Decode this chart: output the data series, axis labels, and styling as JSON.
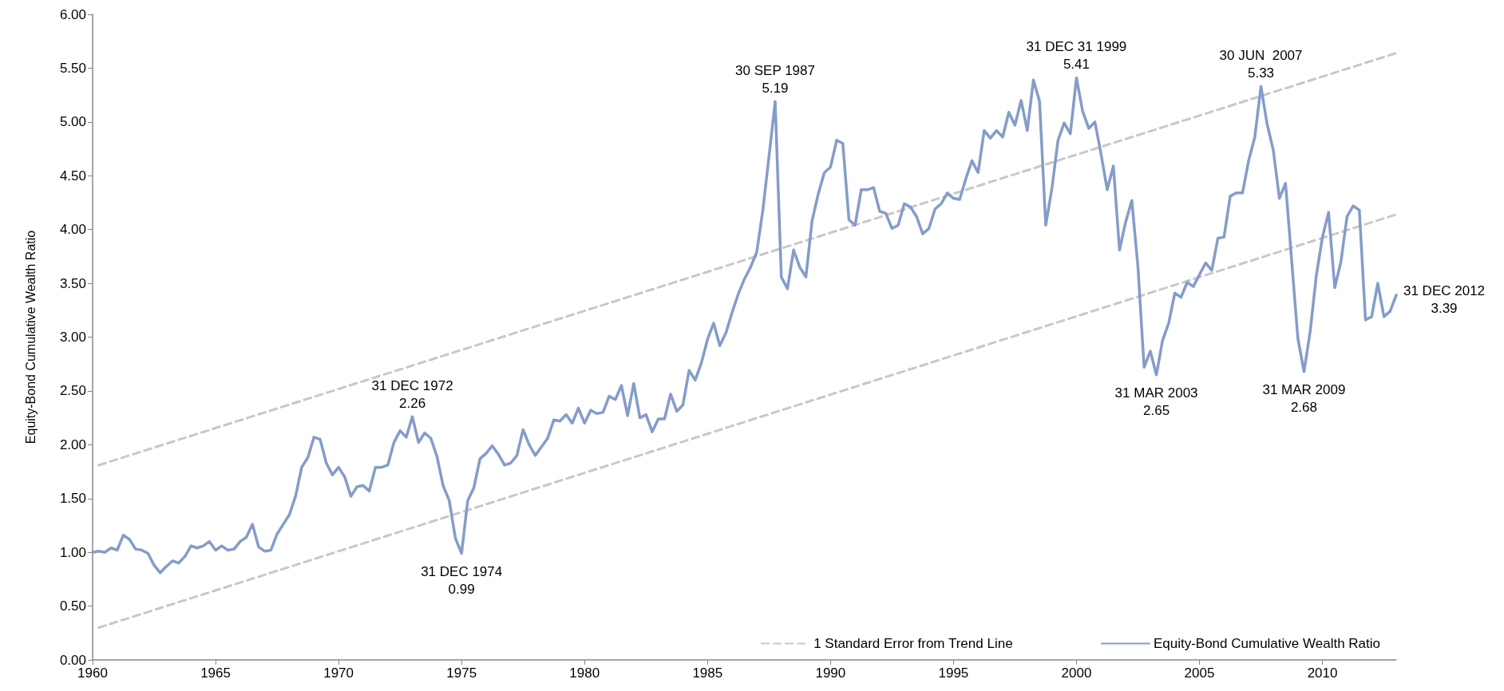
{
  "chart_data": {
    "type": "line",
    "ylabel": "Equity-Bond Cumulative Wealth Ratio",
    "xlim": [
      1960,
      2013
    ],
    "xticks": [
      1960,
      1965,
      1970,
      1975,
      1980,
      1985,
      1990,
      1995,
      2000,
      2005,
      2010
    ],
    "ylim": [
      0,
      6
    ],
    "yticks": [
      {
        "value": 0,
        "label": "0.00"
      },
      {
        "value": 0.5,
        "label": "0.50"
      },
      {
        "value": 1,
        "label": "1.00"
      },
      {
        "value": 1.5,
        "label": "1.50"
      },
      {
        "value": 2,
        "label": "2.00"
      },
      {
        "value": 2.5,
        "label": "2.50"
      },
      {
        "value": 3,
        "label": "3.00"
      },
      {
        "value": 3.5,
        "label": "3.50"
      },
      {
        "value": 4,
        "label": "4.00"
      },
      {
        "value": 4.5,
        "label": "4.50"
      },
      {
        "value": 5,
        "label": "5.00"
      },
      {
        "value": 5.5,
        "label": "5.50"
      },
      {
        "value": 6,
        "label": "6.00"
      }
    ],
    "grid": false,
    "legend": "bottom",
    "marker": "none",
    "series": [
      {
        "name": "1 Standard Error from Trend Line",
        "color": "#c8c8c8",
        "line_style": "dashed",
        "x": [
          1960.25,
          2013
        ],
        "values": [
          1.81,
          5.64
        ]
      },
      {
        "color": "#c8c8c8",
        "line_style": "dashed",
        "x": [
          1960.25,
          2013
        ],
        "values": [
          0.3,
          4.14
        ]
      },
      {
        "name": "Equity-Bond Cumulative Wealth Ratio",
        "color": "#849cc9",
        "line_style": "solid",
        "x": [
          1960,
          1960.25,
          1960.5,
          1960.75,
          1961,
          1961.25,
          1961.5,
          1961.75,
          1962,
          1962.25,
          1962.5,
          1962.75,
          1963,
          1963.25,
          1963.5,
          1963.75,
          1964,
          1964.25,
          1964.5,
          1964.75,
          1965,
          1965.25,
          1965.5,
          1965.75,
          1966,
          1966.25,
          1966.5,
          1966.75,
          1967,
          1967.25,
          1967.5,
          1967.75,
          1968,
          1968.25,
          1968.5,
          1968.75,
          1969,
          1969.25,
          1969.5,
          1969.75,
          1970,
          1970.25,
          1970.5,
          1970.75,
          1971,
          1971.25,
          1971.5,
          1971.75,
          1972,
          1972.25,
          1972.5,
          1972.75,
          1973,
          1973.25,
          1973.5,
          1973.75,
          1974,
          1974.25,
          1974.5,
          1974.75,
          1975,
          1975.25,
          1975.5,
          1975.75,
          1976,
          1976.25,
          1976.5,
          1976.75,
          1977,
          1977.25,
          1977.5,
          1977.75,
          1978,
          1978.25,
          1978.5,
          1978.75,
          1979,
          1979.25,
          1979.5,
          1979.75,
          1980,
          1980.25,
          1980.5,
          1980.75,
          1981,
          1981.25,
          1981.5,
          1981.75,
          1982,
          1982.25,
          1982.5,
          1982.75,
          1983,
          1983.25,
          1983.5,
          1983.75,
          1984,
          1984.25,
          1984.5,
          1984.75,
          1985,
          1985.25,
          1985.5,
          1985.75,
          1986,
          1986.25,
          1986.5,
          1986.75,
          1987,
          1987.25,
          1987.5,
          1987.75,
          1988,
          1988.25,
          1988.5,
          1988.75,
          1989,
          1989.25,
          1989.5,
          1989.75,
          1990,
          1990.25,
          1990.5,
          1990.75,
          1991,
          1991.25,
          1991.5,
          1991.75,
          1992,
          1992.25,
          1992.5,
          1992.75,
          1993,
          1993.25,
          1993.5,
          1993.75,
          1994,
          1994.25,
          1994.5,
          1994.75,
          1995,
          1995.25,
          1995.5,
          1995.75,
          1996,
          1996.25,
          1996.5,
          1996.75,
          1997,
          1997.25,
          1997.5,
          1997.75,
          1998,
          1998.25,
          1998.5,
          1998.75,
          1999,
          1999.25,
          1999.5,
          1999.75,
          2000,
          2000.25,
          2000.5,
          2000.75,
          2001,
          2001.25,
          2001.5,
          2001.75,
          2002,
          2002.25,
          2002.5,
          2002.75,
          2003,
          2003.25,
          2003.5,
          2003.75,
          2004,
          2004.25,
          2004.5,
          2004.75,
          2005,
          2005.25,
          2005.5,
          2005.75,
          2006,
          2006.25,
          2006.5,
          2006.75,
          2007,
          2007.25,
          2007.5,
          2007.75,
          2008,
          2008.25,
          2008.5,
          2008.75,
          2009,
          2009.25,
          2009.5,
          2009.75,
          2010,
          2010.25,
          2010.5,
          2010.75,
          2011,
          2011.25,
          2011.5,
          2011.75,
          2012,
          2012.25,
          2012.5,
          2012.75,
          2013
        ],
        "values": [
          1.0,
          1.01,
          1.0,
          1.04,
          1.02,
          1.16,
          1.12,
          1.03,
          1.02,
          0.99,
          0.88,
          0.81,
          0.87,
          0.92,
          0.9,
          0.96,
          1.06,
          1.04,
          1.06,
          1.1,
          1.02,
          1.06,
          1.02,
          1.03,
          1.1,
          1.14,
          1.26,
          1.05,
          1.01,
          1.02,
          1.17,
          1.26,
          1.35,
          1.52,
          1.79,
          1.88,
          2.07,
          2.05,
          1.83,
          1.72,
          1.79,
          1.7,
          1.52,
          1.61,
          1.62,
          1.57,
          1.79,
          1.79,
          1.81,
          2.02,
          2.13,
          2.07,
          2.26,
          2.02,
          2.11,
          2.06,
          1.89,
          1.62,
          1.48,
          1.13,
          0.99,
          1.48,
          1.6,
          1.87,
          1.92,
          1.99,
          1.91,
          1.81,
          1.83,
          1.9,
          2.14,
          2.0,
          1.9,
          1.98,
          2.06,
          2.23,
          2.22,
          2.28,
          2.2,
          2.34,
          2.2,
          2.32,
          2.29,
          2.3,
          2.45,
          2.42,
          2.55,
          2.27,
          2.57,
          2.25,
          2.28,
          2.12,
          2.24,
          2.24,
          2.47,
          2.31,
          2.37,
          2.69,
          2.6,
          2.76,
          2.98,
          3.13,
          2.92,
          3.04,
          3.23,
          3.4,
          3.54,
          3.65,
          3.79,
          4.18,
          4.68,
          5.19,
          3.56,
          3.45,
          3.81,
          3.65,
          3.56,
          4.08,
          4.33,
          4.53,
          4.58,
          4.83,
          4.8,
          4.09,
          4.04,
          4.37,
          4.37,
          4.39,
          4.17,
          4.15,
          4.01,
          4.04,
          4.24,
          4.21,
          4.12,
          3.96,
          4.01,
          4.19,
          4.24,
          4.34,
          4.29,
          4.28,
          4.47,
          4.64,
          4.53,
          4.92,
          4.85,
          4.92,
          4.86,
          5.09,
          4.97,
          5.2,
          4.92,
          5.39,
          5.19,
          4.04,
          4.38,
          4.83,
          4.99,
          4.89,
          5.41,
          5.1,
          4.94,
          5.0,
          4.7,
          4.37,
          4.59,
          3.81,
          4.07,
          4.27,
          3.65,
          2.72,
          2.87,
          2.65,
          2.97,
          3.13,
          3.41,
          3.37,
          3.51,
          3.47,
          3.58,
          3.69,
          3.62,
          3.92,
          3.93,
          4.31,
          4.34,
          4.34,
          4.64,
          4.86,
          5.33,
          4.98,
          4.74,
          4.29,
          4.43,
          3.71,
          2.99,
          2.68,
          3.05,
          3.57,
          3.93,
          4.16,
          3.46,
          3.7,
          4.12,
          4.22,
          4.18,
          3.16,
          3.19,
          3.5,
          3.19,
          3.24,
          3.39
        ]
      }
    ],
    "annotations": [
      {
        "text": "31 DEC 1972\n2.26",
        "x": 1973,
        "y": 2.26
      },
      {
        "text": "31 DEC 1974\n0.99",
        "x": 1975,
        "y": 0.99
      },
      {
        "text": "30 SEP 1987\n5.19",
        "x": 1987.75,
        "y": 5.19
      },
      {
        "text": "31 DEC 31 1999\n5.41",
        "x": 2000,
        "y": 5.41
      },
      {
        "text": "31 MAR 2003\n2.65",
        "x": 2003.25,
        "y": 2.65
      },
      {
        "text": "30 JUN  2007\n5.33",
        "x": 2007.5,
        "y": 5.33
      },
      {
        "text": "31 MAR 2009\n2.68",
        "x": 2009.25,
        "y": 2.68
      },
      {
        "text": "31 DEC 2012\n3.39",
        "x": 2013,
        "y": 3.39
      }
    ]
  }
}
